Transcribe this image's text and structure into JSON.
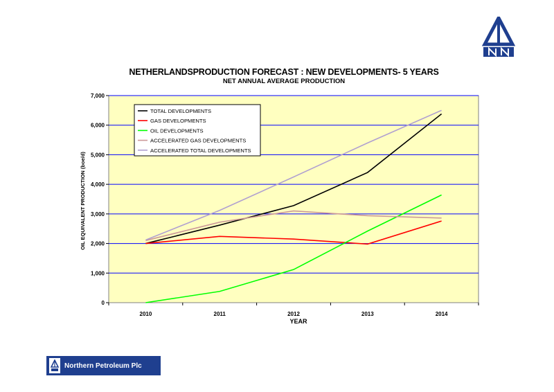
{
  "company": {
    "name": "Northern Petroleum Plc",
    "brand_color": "#1f3f8f"
  },
  "chart_data": {
    "type": "line",
    "title": "NETHERLANDSPRODUCTION FORECAST : NEW DEVELOPMENTS- 5 YEARS",
    "subtitle": "NET ANNUAL AVERAGE PRODUCTION",
    "xlabel": "YEAR",
    "ylabel": "OIL EQUIVALENT PRODUCTION  (boe/d)",
    "categories": [
      "2010",
      "2011",
      "2012",
      "2013",
      "2014"
    ],
    "ylim": [
      0,
      7000
    ],
    "yticks": [
      0,
      1000,
      2000,
      3000,
      4000,
      5000,
      6000,
      7000
    ],
    "ytick_labels": [
      "0",
      "1,000",
      "2,000",
      "3,000",
      "4,000",
      "5,000",
      "6,000",
      "7,000"
    ],
    "grid": true,
    "legend_position": "top-left",
    "plot_background": "#ffffc0",
    "grid_color": "#0000ff",
    "series": [
      {
        "name": "TOTAL DEVELOPMENTS",
        "color": "#000000",
        "values": [
          2000,
          2620,
          3280,
          4400,
          6380
        ]
      },
      {
        "name": "GAS DEVELOPMENTS",
        "color": "#ff0000",
        "values": [
          2000,
          2240,
          2150,
          1980,
          2760
        ]
      },
      {
        "name": "OIL DEVELOPMENTS",
        "color": "#00ff00",
        "values": [
          0,
          380,
          1120,
          2420,
          3640
        ]
      },
      {
        "name": "ACCELERATED GAS DEVELOPMENTS",
        "color": "#cc9999",
        "values": [
          2100,
          2720,
          3100,
          2940,
          2860
        ]
      },
      {
        "name": "ACCELERATED TOTAL DEVELOPMENTS",
        "color": "#b0a0d0",
        "values": [
          2120,
          3120,
          4250,
          5400,
          6500
        ]
      }
    ]
  }
}
